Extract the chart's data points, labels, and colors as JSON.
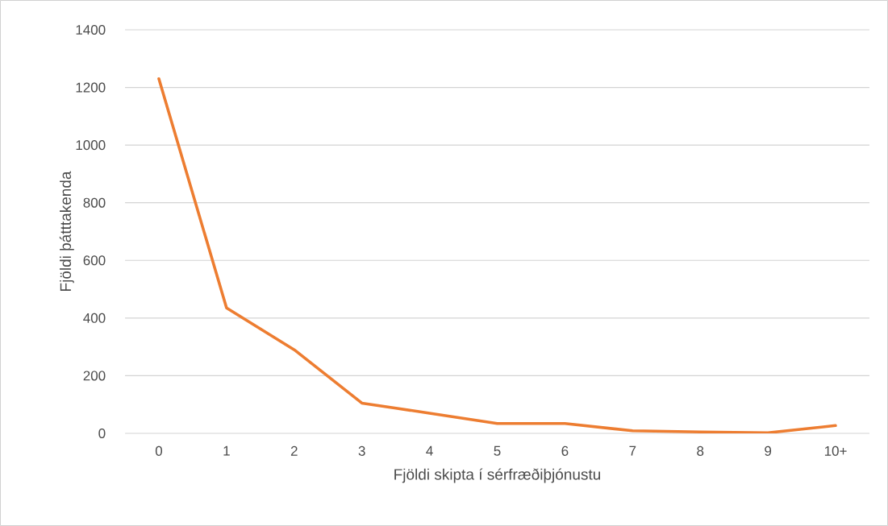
{
  "chart_data": {
    "type": "line",
    "xlabel": "Fjöldi skipta í sérfræðiþjónustu",
    "ylabel": "Fjöldi þátttakenda",
    "categories": [
      "0",
      "1",
      "2",
      "3",
      "4",
      "5",
      "6",
      "7",
      "8",
      "9",
      "10+"
    ],
    "values": [
      1230,
      435,
      290,
      105,
      70,
      34,
      34,
      9,
      5,
      2,
      27
    ],
    "color": "#ed7d31",
    "ylim": [
      0,
      1400
    ],
    "yticks": [
      0,
      200,
      400,
      600,
      800,
      1000,
      1200,
      1400
    ],
    "grid": "y"
  }
}
